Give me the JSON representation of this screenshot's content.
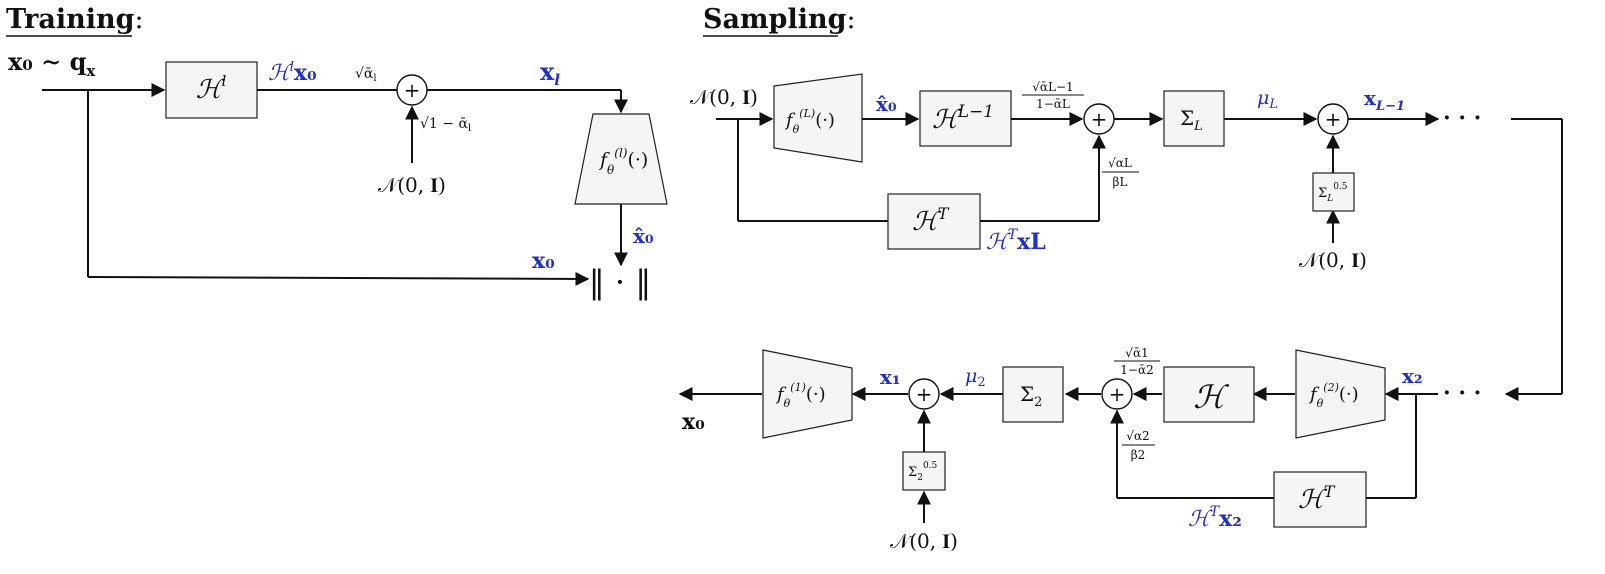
{
  "colors": {
    "accent": "#1f2fd6",
    "ink": "#111111",
    "box_fill": "#f5f5f5"
  },
  "headings": {
    "training": "Training",
    "sampling": "Sampling",
    "colon": ":"
  },
  "training": {
    "input": "x₀ ∼ q",
    "input_sub": "x",
    "H_op": "ℋ",
    "H_op_sup": "l",
    "Hx0": "ℋ",
    "Hx0_sup": "l",
    "Hx0_tail": "x₀",
    "scale_top": "√ᾱ",
    "scale_top_sub": "l",
    "scale_bottom": "√1 − ᾱ",
    "scale_bottom_sub": "l",
    "noise": "𝒩(0, 𝐈)",
    "xl": "x",
    "xl_sub": "l",
    "net": "f",
    "net_sub": "θ",
    "net_sup": "(l)",
    "net_arg": "(·)",
    "x0hat": "x̂₀",
    "x0": "x₀",
    "norm": "‖ · ‖",
    "sum_symbol": "+"
  },
  "sampling": {
    "noise_in": "𝒩(0, 𝐈)",
    "netL": "f",
    "netL_sub": "θ",
    "netL_sup": "(L)",
    "netL_arg": "(·)",
    "x0hat": "x̂₀",
    "HL1": "ℋ",
    "HL1_sup": "L−1",
    "coef_top_num": "√ᾱL−1",
    "coef_top_den": "1−ᾱL",
    "coef_bot_num": "√αL",
    "coef_bot_den": "βL",
    "HT_top": "ℋ",
    "HT_top_sup": "T",
    "HTxL": "ℋ",
    "HTxL_sup": "T",
    "HTxL_tail": "xL",
    "SigmaL": "Σ",
    "SigmaL_sub": "L",
    "muL": "μ",
    "muL_sub": "L",
    "SigmaL05": "Σ",
    "SigmaL05_sub": "L",
    "SigmaL05_sup": "0.5",
    "noise_L": "𝒩(0, 𝐈)",
    "xL1": "x",
    "xL1_sub": "L−1",
    "dots_top": "· · ·",
    "dots_bottom": "· · ·",
    "x2": "x₂",
    "net2": "f",
    "net2_sub": "θ",
    "net2_sup": "(2)",
    "net2_arg": "(·)",
    "H_plain": "ℋ",
    "coef2_top_num": "√ᾱ1",
    "coef2_top_den": "1−ᾱ2",
    "coef2_bot_num": "√α2",
    "coef2_bot_den": "β2",
    "HT_bottom": "ℋ",
    "HT_bottom_sup": "T",
    "HTx2": "ℋ",
    "HTx2_sup": "T",
    "HTx2_tail": "x₂",
    "Sigma2": "Σ",
    "Sigma2_sub": "2",
    "mu2": "μ",
    "mu2_sub": "2",
    "Sigma2_05": "Σ",
    "Sigma2_05_sub": "2",
    "Sigma2_05_sup": "0.5",
    "noise_2": "𝒩(0, 𝐈)",
    "x1": "x₁",
    "net1": "f",
    "net1_sub": "θ",
    "net1_sup": "(1)",
    "net1_arg": "(·)",
    "x0_out": "x₀",
    "sum_symbol": "+"
  }
}
